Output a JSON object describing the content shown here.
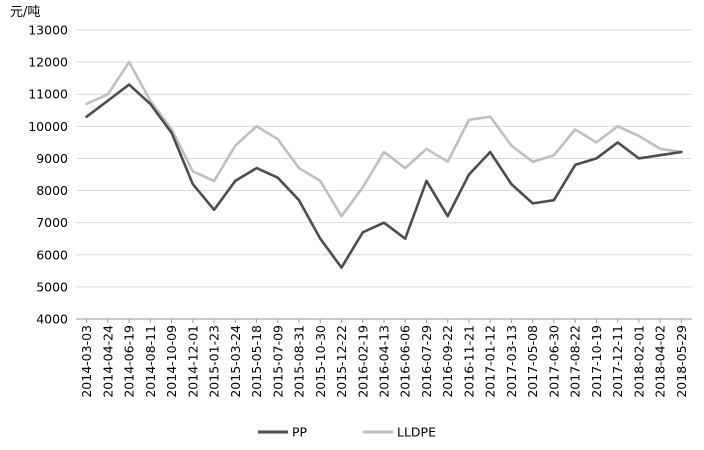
{
  "chart_data": {
    "type": "line",
    "title": "",
    "ylabel": "元/吨",
    "xlabel": "",
    "ylim": [
      4000,
      13000
    ],
    "yticks": [
      4000,
      5000,
      6000,
      7000,
      8000,
      9000,
      10000,
      11000,
      12000,
      13000
    ],
    "grid": "horizontal",
    "legend": "bottom",
    "x": [
      "2014-03-03",
      "2014-04-24",
      "2014-06-19",
      "2014-08-11",
      "2014-10-09",
      "2014-12-01",
      "2015-01-23",
      "2015-03-24",
      "2015-05-18",
      "2015-07-09",
      "2015-08-31",
      "2015-10-30",
      "2015-12-22",
      "2016-02-19",
      "2016-04-13",
      "2016-06-06",
      "2016-07-29",
      "2016-09-22",
      "2016-11-21",
      "2017-01-12",
      "2017-03-13",
      "2017-05-08",
      "2017-06-30",
      "2017-08-22",
      "2017-10-19",
      "2017-12-11",
      "2018-02-01",
      "2018-04-02",
      "2018-05-29"
    ],
    "series": [
      {
        "name": "PP",
        "color": "#4d4d4d",
        "values": [
          10300,
          10800,
          11300,
          10700,
          9800,
          8200,
          7400,
          8300,
          8700,
          8400,
          7700,
          6500,
          5600,
          6700,
          7000,
          6500,
          8300,
          7200,
          8500,
          9200,
          8200,
          7600,
          7700,
          8800,
          9000,
          9500,
          9000,
          9100,
          9200
        ]
      },
      {
        "name": "LLDPE",
        "color": "#bfbfbf",
        "values": [
          10700,
          11000,
          12000,
          10800,
          9900,
          8600,
          8300,
          9400,
          10000,
          9600,
          8700,
          8300,
          7200,
          8100,
          9200,
          8700,
          9300,
          8900,
          10200,
          10300,
          9400,
          8900,
          9100,
          9900,
          9500,
          10000,
          9700,
          9300,
          9200
        ]
      }
    ]
  }
}
